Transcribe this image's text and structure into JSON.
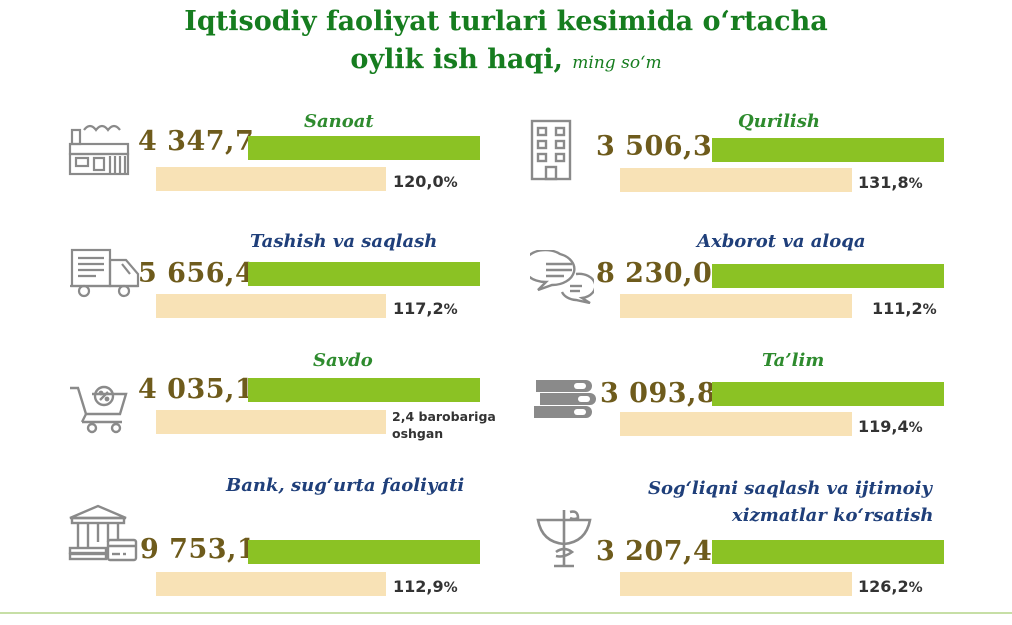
{
  "title_line1": "Iqtisodiy faoliyat turlari kesimida o‘rtacha",
  "title_line2": "oylik ish haqi,",
  "unit": "ming so‘m",
  "colors": {
    "title": "#167d1f",
    "label_green": "#2e8b2e",
    "label_blue": "#1f3f7a",
    "value": "#6e5b1c",
    "bar_wage": "#8bc224",
    "bar_growth": "#f8e2b6"
  },
  "panels": [
    {
      "label": "Sanoat",
      "value": "4 347,7",
      "pct": "120,0",
      "pct_sign": "%",
      "icon": "factory-icon"
    },
    {
      "label": "Qurilish",
      "value": "3 506,3",
      "pct": "131,8",
      "pct_sign": "%",
      "icon": "building-icon"
    },
    {
      "label": "Tashish va saqlash",
      "value": "5 656,4",
      "pct": "117,2",
      "pct_sign": "%",
      "icon": "truck-icon"
    },
    {
      "label": "Axborot va aloqa",
      "value": "8 230,0",
      "pct": "111,2",
      "pct_sign": "%",
      "icon": "chat-bubbles-icon"
    },
    {
      "label": "Savdo",
      "value": "4 035,1",
      "note1": "2,4 barobariga",
      "note2": "oshgan",
      "icon": "shopping-cart-icon"
    },
    {
      "label": "Ta’lim",
      "value": "3 093,8",
      "pct": "119,4",
      "pct_sign": "%",
      "icon": "books-icon"
    },
    {
      "label": "Bank, sug‘urta faoliyati",
      "value": "9 753,1",
      "pct": "112,9",
      "pct_sign": "%",
      "icon": "bank-icon"
    },
    {
      "label1": "Sog‘liqni saqlash va ijtimoiy",
      "label2": "xizmatlar ko‘rsatish",
      "value": "3 207,4",
      "pct": "126,2",
      "pct_sign": "%",
      "icon": "medical-bowl-icon"
    }
  ],
  "chart_data": {
    "type": "bar",
    "title": "Iqtisodiy faoliyat turlari kesimida o‘rtacha oylik ish haqi,",
    "unit": "ming so‘m",
    "categories": [
      "Sanoat",
      "Qurilish",
      "Tashish va saqlash",
      "Axborot va aloqa",
      "Savdo",
      "Ta’lim",
      "Bank, sug‘urta faoliyati",
      "Sog‘liqni saqlash va ijtimoiy xizmatlar ko‘rsatish"
    ],
    "series": [
      {
        "values": [
          4347.7,
          3506.3,
          5656.4,
          8230.0,
          4035.1,
          3093.8,
          9753.1,
          3207.4
        ]
      },
      {
        "values": [
          120.0,
          131.8,
          117.2,
          111.2,
          240.0,
          119.4,
          112.9,
          126.2
        ]
      }
    ]
  }
}
